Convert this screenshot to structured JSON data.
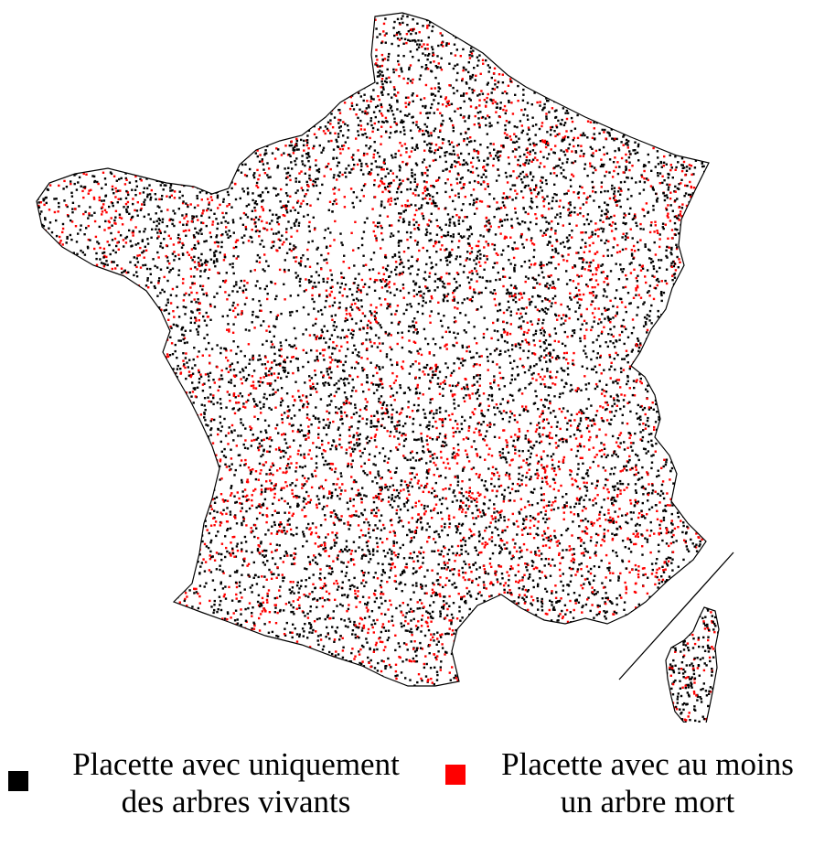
{
  "legend": {
    "items": [
      {
        "line1": "Placette avec uniquement",
        "line2": "des arbres vivants",
        "color": "#000000"
      },
      {
        "line1": "Placette avec au moins",
        "line2": "un arbre mort",
        "color": "#ff0000"
      }
    ]
  },
  "map": {
    "outline_color": "#000000",
    "background": "#ffffff",
    "corsica_inset": true
  }
}
